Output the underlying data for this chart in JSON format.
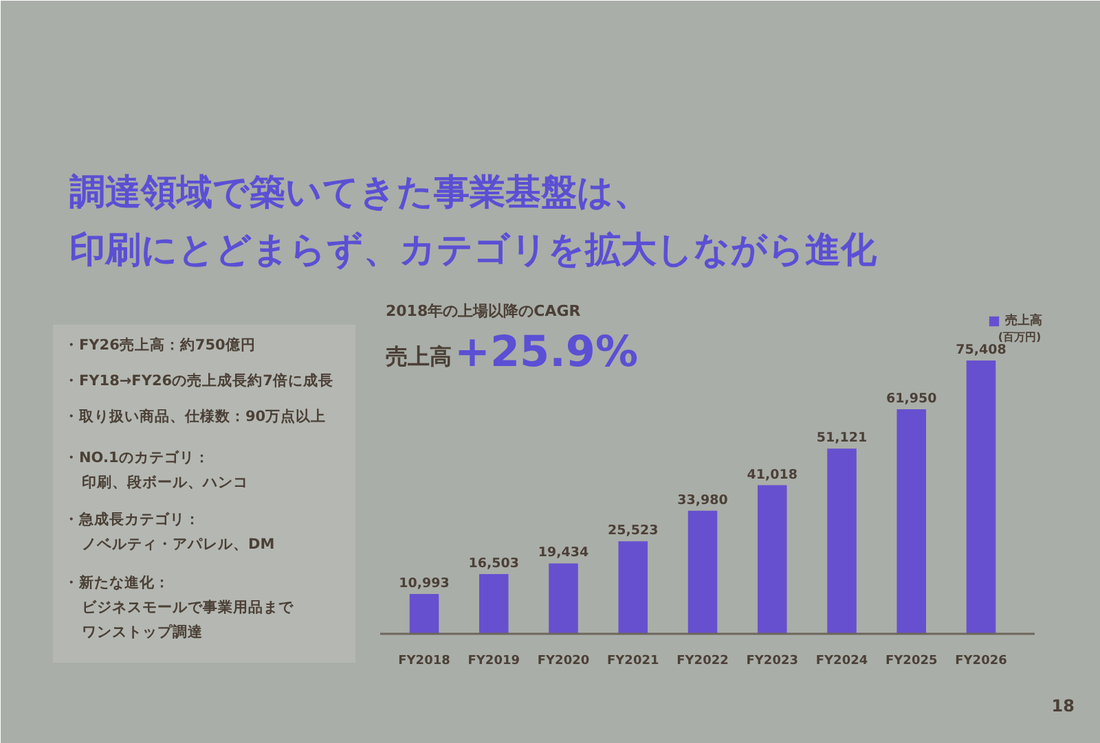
{
  "chart_data": {
    "type": "bar",
    "title": "調達領域で築いてきた事業基盤は、印刷にとどまらず、カテゴリを拡大しながら進化",
    "categories": [
      "FY2018",
      "FY2019",
      "FY2020",
      "FY2021",
      "FY2022",
      "FY2023",
      "FY2024",
      "FY2025",
      "FY2026"
    ],
    "series": [
      {
        "name": "売上高",
        "color": "#6650cf",
        "values": [
          10993,
          16503,
          19434,
          25523,
          33980,
          41018,
          51121,
          61950,
          75408
        ],
        "value_labels": [
          "10,993",
          "16,503",
          "19,434",
          "25,523",
          "33,980",
          "41,018",
          "51,121",
          "61,950",
          "75,408"
        ]
      }
    ],
    "legend": "top right",
    "annotations": [
      "(百万円)",
      "2018年の上場以降のCAGR",
      "売上高",
      "+25.9%",
      "・FY26売上高：約750億円",
      "・FY18→FY26の売上成長約7倍に成長",
      "・取り扱い商品、仕様数：90万点以上",
      "・NO.1のカテゴリ：",
      "印刷、段ボール、ハンコ",
      "・急成長カテゴリ：",
      "ノベルティ・アパレル、DM",
      "・新たな進化：",
      "ビジネスモールで事業用品までワンストップ調達",
      "18"
    ]
  }
}
